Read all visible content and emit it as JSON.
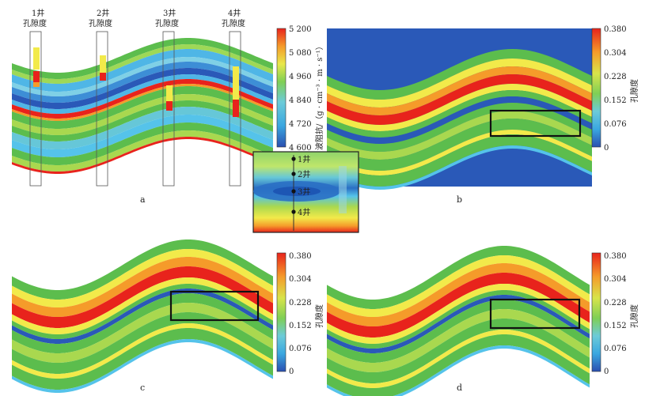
{
  "panels": {
    "a": {
      "label": "a",
      "colorbar": {
        "ticks": [
          "5 200",
          "5 080",
          "4 960",
          "4 840",
          "4 720",
          "4 600"
        ],
        "title": "波阻抗/（g · cm⁻³ · m · s⁻¹）"
      },
      "wells": [
        {
          "name": "1井",
          "prop": "孔隙度"
        },
        {
          "name": "2井",
          "prop": "孔隙度"
        },
        {
          "name": "3井",
          "prop": "孔隙度"
        },
        {
          "name": "4井",
          "prop": "孔隙度"
        }
      ]
    },
    "b": {
      "label": "b",
      "colorbar": {
        "ticks": [
          "0.380",
          "0.304",
          "0.228",
          "0.152",
          "0.076",
          "0"
        ],
        "title": "孔隙度"
      }
    },
    "c": {
      "label": "c",
      "colorbar": {
        "ticks": [
          "0.380",
          "0.304",
          "0.228",
          "0.152",
          "0.076",
          "0"
        ],
        "title": "孔隙度"
      }
    },
    "d": {
      "label": "d",
      "colorbar": {
        "ticks": [
          "0.380",
          "0.304",
          "0.228",
          "0.152",
          "0.076",
          "0"
        ],
        "title": "孔隙度"
      }
    }
  },
  "inset": {
    "wells": [
      "1井",
      "2井",
      "3井",
      "4井"
    ]
  },
  "colors": {
    "red": "#e8231c",
    "orange": "#f59b2a",
    "yellow": "#f2ea4a",
    "lime": "#a9d84f",
    "green": "#5cbd4d",
    "cyan": "#55c3ea",
    "blue": "#2a6fc4",
    "navy": "#1d3f9a",
    "deepblue": "#2a59b8"
  }
}
